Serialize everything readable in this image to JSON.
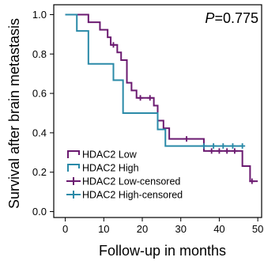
{
  "chart_data": {
    "type": "line",
    "subtype": "kaplan-meier step curve",
    "xlabel": "Follow-up in months",
    "ylabel": "Survival after brain metastasis",
    "xlim": [
      -3,
      51
    ],
    "ylim": [
      -0.03,
      1.05
    ],
    "xticks": [
      "0",
      "10",
      "20",
      "30",
      "40",
      "50"
    ],
    "yticks": [
      "0.0",
      "0.2",
      "0.4",
      "0.6",
      "0.8",
      "1.0"
    ],
    "xtick_values": [
      0,
      10,
      20,
      30,
      40,
      50
    ],
    "ytick_values": [
      0.0,
      0.2,
      0.4,
      0.6,
      0.8,
      1.0
    ],
    "grid": false,
    "annotation": {
      "p_symbol": "P",
      "p_value": "=0.775",
      "position": "top-right"
    },
    "legend_position": "bottom-left",
    "series": [
      {
        "name": "HDAC2 Low",
        "color": "#6b1a70",
        "steps": [
          [
            0,
            1.0
          ],
          [
            6,
            0.961
          ],
          [
            9,
            0.923
          ],
          [
            11,
            0.885
          ],
          [
            11.8,
            0.846
          ],
          [
            13.5,
            0.808
          ],
          [
            14.5,
            0.769
          ],
          [
            16,
            0.654
          ],
          [
            17.2,
            0.615
          ],
          [
            18.5,
            0.577
          ],
          [
            23,
            0.538
          ],
          [
            24,
            0.462
          ],
          [
            25.5,
            0.423
          ],
          [
            27,
            0.369
          ],
          [
            36,
            0.308
          ],
          [
            44.5,
            0.308
          ],
          [
            46,
            0.231
          ],
          [
            48,
            0.154
          ],
          [
            50,
            0.154
          ]
        ],
        "censored": [
          [
            12.5,
            0.846
          ],
          [
            19.5,
            0.577
          ],
          [
            22,
            0.577
          ],
          [
            31.5,
            0.369
          ],
          [
            38,
            0.308
          ],
          [
            40,
            0.308
          ],
          [
            42,
            0.308
          ],
          [
            44,
            0.308
          ],
          [
            48.5,
            0.154
          ]
        ]
      },
      {
        "name": "HDAC2 High",
        "color": "#2a8aa8",
        "steps": [
          [
            0,
            1.0
          ],
          [
            3,
            0.917
          ],
          [
            6,
            0.75
          ],
          [
            12.5,
            0.667
          ],
          [
            15,
            0.5
          ],
          [
            24,
            0.417
          ],
          [
            26,
            0.333
          ],
          [
            46,
            0.333
          ]
        ],
        "censored": [
          [
            36,
            0.333
          ],
          [
            38.5,
            0.333
          ],
          [
            41,
            0.333
          ],
          [
            43.5,
            0.333
          ],
          [
            46,
            0.333
          ]
        ]
      }
    ],
    "legend": [
      {
        "label": "HDAC2 Low",
        "color": "#6b1a70",
        "marker": "step"
      },
      {
        "label": "HDAC2 High",
        "color": "#2a8aa8",
        "marker": "step"
      },
      {
        "label": "HDAC2 Low-censored",
        "color": "#6b1a70",
        "marker": "plus"
      },
      {
        "label": "HDAC2 High-censored",
        "color": "#2a8aa8",
        "marker": "plus"
      }
    ]
  }
}
